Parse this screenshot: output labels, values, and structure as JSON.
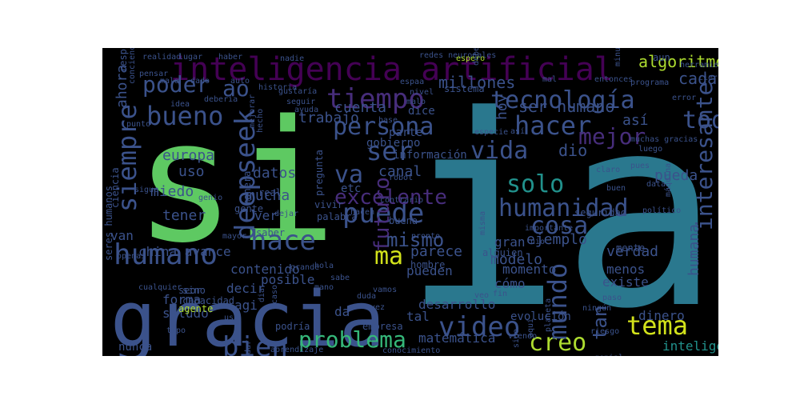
{
  "palette": {
    "background": "#000000",
    "page": "#ffffff",
    "colors": {
      "green": "#5ec962",
      "teal": "#2a788e",
      "blue": "#3b528b",
      "purple": "#472d7b",
      "dark": "#440154",
      "aqua": "#21918c",
      "mint": "#35b779",
      "yellow": "#d2e21b",
      "lime": "#addc30"
    }
  },
  "words": [
    {
      "text": "ia",
      "color": "teal"
    },
    {
      "text": "si",
      "color": "green"
    },
    {
      "text": "gracia",
      "color": "blue"
    },
    {
      "text": "inteligencia artificial",
      "color": "dark"
    },
    {
      "text": "tiempo",
      "color": "purple"
    },
    {
      "text": "tecnología",
      "color": "blue"
    },
    {
      "text": "persona",
      "color": "blue"
    },
    {
      "text": "humano",
      "color": "blue"
    },
    {
      "text": "deepseek",
      "color": "blue"
    },
    {
      "text": "siempre",
      "color": "blue"
    },
    {
      "text": "hace",
      "color": "blue"
    },
    {
      "text": "puede",
      "color": "blue"
    },
    {
      "text": "humanidad",
      "color": "blue"
    },
    {
      "text": "video",
      "color": "blue"
    },
    {
      "text": "tema",
      "color": "yellow"
    },
    {
      "text": "bien",
      "color": "blue"
    },
    {
      "text": "problema",
      "color": "mint"
    },
    {
      "text": "creo",
      "color": "lime"
    },
    {
      "text": "bueno",
      "color": "blue"
    },
    {
      "text": "hacer",
      "color": "blue"
    },
    {
      "text": "mejor",
      "color": "purple"
    },
    {
      "text": "toda",
      "color": "blue"
    },
    {
      "text": "vida",
      "color": "blue"
    },
    {
      "text": "solo",
      "color": "aqua"
    },
    {
      "text": "cosa",
      "color": "blue"
    },
    {
      "text": "mundo",
      "color": "blue"
    },
    {
      "text": "ser",
      "color": "blue"
    },
    {
      "text": "va",
      "color": "blue"
    },
    {
      "text": "ao",
      "color": "blue"
    },
    {
      "text": "poder",
      "color": "blue"
    },
    {
      "text": "ma",
      "color": "yellow"
    },
    {
      "text": "interesante",
      "color": "blue"
    },
    {
      "text": "excelente",
      "color": "purple"
    },
    {
      "text": "futuro",
      "color": "purple"
    },
    {
      "text": "mismo",
      "color": "blue"
    },
    {
      "text": "algoritmo",
      "color": "lime"
    },
    {
      "text": "ser humano",
      "color": "blue"
    },
    {
      "text": "dio",
      "color": "blue"
    },
    {
      "text": "tan",
      "color": "blue"
    },
    {
      "text": "así",
      "color": "blue"
    },
    {
      "text": "cada",
      "color": "blue"
    },
    {
      "text": "hoy",
      "color": "blue"
    },
    {
      "text": "millones",
      "color": "blue"
    },
    {
      "text": "cuenta",
      "color": "blue"
    },
    {
      "text": "trabajo",
      "color": "blue"
    },
    {
      "text": "ahora",
      "color": "blue"
    },
    {
      "text": "europa",
      "color": "blue"
    },
    {
      "text": "uso",
      "color": "blue"
    },
    {
      "text": "miedo",
      "color": "blue"
    },
    {
      "text": "tener",
      "color": "blue"
    },
    {
      "text": "datos",
      "color": "blue"
    },
    {
      "text": "mucha",
      "color": "blue"
    },
    {
      "text": "canal",
      "color": "blue"
    },
    {
      "text": "parece",
      "color": "blue"
    },
    {
      "text": "modelo",
      "color": "blue"
    },
    {
      "text": "verdad",
      "color": "blue"
    },
    {
      "text": "menos",
      "color": "blue"
    },
    {
      "text": "existe",
      "color": "blue"
    },
    {
      "text": "humana",
      "color": "blue"
    },
    {
      "text": "pueda",
      "color": "blue"
    },
    {
      "text": "ejemplo",
      "color": "blue"
    },
    {
      "text": "gran",
      "color": "blue"
    },
    {
      "text": "momento",
      "color": "blue"
    },
    {
      "text": "cómo",
      "color": "blue"
    },
    {
      "text": "pueden",
      "color": "blue"
    },
    {
      "text": "contenido",
      "color": "blue"
    },
    {
      "text": "decir",
      "color": "blue"
    },
    {
      "text": "posible",
      "color": "blue"
    },
    {
      "text": "china avance",
      "color": "blue"
    },
    {
      "text": "van",
      "color": "blue"
    },
    {
      "text": "forma",
      "color": "blue"
    },
    {
      "text": "saludo",
      "color": "blue"
    },
    {
      "text": "sino",
      "color": "blue"
    },
    {
      "text": "nunca",
      "color": "blue"
    },
    {
      "text": "desarrollo",
      "color": "blue"
    },
    {
      "text": "dinero",
      "color": "blue"
    },
    {
      "text": "matemática",
      "color": "blue"
    },
    {
      "text": "inteligencia",
      "color": "aqua"
    },
    {
      "text": "información",
      "color": "blue"
    },
    {
      "text": "gobierno",
      "color": "blue"
    },
    {
      "text": "parte",
      "color": "blue"
    },
    {
      "text": "dice",
      "color": "blue"
    },
    {
      "text": "sistema",
      "color": "blue"
    },
    {
      "text": "etc",
      "color": "blue"
    },
    {
      "text": "tal",
      "color": "blue"
    },
    {
      "text": "da",
      "color": "blue"
    },
    {
      "text": "ver",
      "color": "blue"
    },
    {
      "text": "saber",
      "color": "blue"
    },
    {
      "text": "gente",
      "color": "blue"
    },
    {
      "text": "manera",
      "color": "blue"
    },
    {
      "text": "real",
      "color": "blue"
    },
    {
      "text": "pregunta",
      "color": "blue"
    },
    {
      "text": "vivir",
      "color": "blue"
    },
    {
      "text": "palabra",
      "color": "blue"
    },
    {
      "text": "buena",
      "color": "blue"
    },
    {
      "text": "hombre",
      "color": "blue"
    },
    {
      "text": "alguien",
      "color": "blue"
    },
    {
      "text": "seor",
      "color": "blue"
    },
    {
      "text": "capacidad",
      "color": "blue"
    },
    {
      "text": "agente",
      "color": "lime"
    },
    {
      "text": "agi",
      "color": "blue"
    },
    {
      "text": "podría",
      "color": "blue"
    },
    {
      "text": "empresa",
      "color": "blue"
    },
    {
      "text": "evolución",
      "color": "blue"
    },
    {
      "text": "tipo",
      "color": "blue"
    },
    {
      "text": "aprendizaje",
      "color": "blue"
    },
    {
      "text": "conocimiento",
      "color": "blue"
    },
    {
      "text": "seguridad",
      "color": "blue"
    },
    {
      "text": "mente",
      "color": "blue"
    },
    {
      "text": "ciencia",
      "color": "blue"
    },
    {
      "text": "seres humanos",
      "color": "blue"
    },
    {
      "text": "conciencia",
      "color": "blue"
    },
    {
      "text": "respuesta",
      "color": "blue"
    },
    {
      "text": "realidad",
      "color": "blue"
    },
    {
      "text": "lugar",
      "color": "blue"
    },
    {
      "text": "haber",
      "color": "blue"
    },
    {
      "text": "nadie",
      "color": "blue"
    },
    {
      "text": "redes neuronales",
      "color": "blue"
    },
    {
      "text": "espero",
      "color": "lime"
    },
    {
      "text": "debe",
      "color": "blue"
    },
    {
      "text": "minuto",
      "color": "blue"
    },
    {
      "text": "aun",
      "color": "blue"
    },
    {
      "text": "herramienta",
      "color": "blue"
    },
    {
      "text": "cierto",
      "color": "blue"
    },
    {
      "text": "error",
      "color": "blue"
    },
    {
      "text": "pensar",
      "color": "blue"
    },
    {
      "text": "espaa",
      "color": "blue"
    },
    {
      "text": "nivel",
      "color": "blue"
    },
    {
      "text": "malo",
      "color": "blue"
    },
    {
      "text": "mal",
      "color": "blue"
    },
    {
      "text": "entonces",
      "color": "blue"
    },
    {
      "text": "programa",
      "color": "blue"
    },
    {
      "text": "mala",
      "color": "blue"
    },
    {
      "text": "dado",
      "color": "blue"
    },
    {
      "text": "auto",
      "color": "blue"
    },
    {
      "text": "historia",
      "color": "blue"
    },
    {
      "text": "gustaría",
      "color": "blue"
    },
    {
      "text": "seguir",
      "color": "blue"
    },
    {
      "text": "ayuda",
      "color": "blue"
    },
    {
      "text": "idea",
      "color": "blue"
    },
    {
      "text": "deberia",
      "color": "blue"
    },
    {
      "text": "punto",
      "color": "blue"
    },
    {
      "text": "mejorar",
      "color": "blue"
    },
    {
      "text": "hecho",
      "color": "blue"
    },
    {
      "text": "base",
      "color": "blue"
    },
    {
      "text": "especie",
      "color": "blue"
    },
    {
      "text": "así",
      "color": "blue"
    },
    {
      "text": "muchas gracias",
      "color": "blue"
    },
    {
      "text": "luego",
      "color": "blue"
    },
    {
      "text": "claro",
      "color": "blue"
    },
    {
      "text": "pues",
      "color": "blue"
    },
    {
      "text": "data",
      "color": "blue"
    },
    {
      "text": "buen",
      "color": "blue"
    },
    {
      "text": "máquina",
      "color": "blue"
    },
    {
      "text": "político",
      "color": "blue"
    },
    {
      "text": "sigue",
      "color": "blue"
    },
    {
      "text": "genio",
      "color": "blue"
    },
    {
      "text": "dejar",
      "color": "blue"
    },
    {
      "text": "hacen",
      "color": "blue"
    },
    {
      "text": "misma",
      "color": "blue"
    },
    {
      "text": "importante",
      "color": "blue"
    },
    {
      "text": "nio",
      "color": "blue"
    },
    {
      "text": "openai",
      "color": "blue"
    },
    {
      "text": "mayor",
      "color": "blue"
    },
    {
      "text": "hola",
      "color": "blue"
    },
    {
      "text": "grande",
      "color": "blue"
    },
    {
      "text": "mano",
      "color": "blue"
    },
    {
      "text": "sabe",
      "color": "blue"
    },
    {
      "text": "vamos",
      "color": "blue"
    },
    {
      "text": "fin",
      "color": "blue"
    },
    {
      "text": "paso",
      "color": "blue"
    },
    {
      "text": "cualquier",
      "color": "blue"
    },
    {
      "text": "duda",
      "color": "blue"
    },
    {
      "text": "dia",
      "color": "blue"
    },
    {
      "text": "caso",
      "color": "blue"
    },
    {
      "text": "dar",
      "color": "blue"
    },
    {
      "text": "sido",
      "color": "blue"
    },
    {
      "text": "planeta",
      "color": "blue"
    },
    {
      "text": "ningún",
      "color": "blue"
    },
    {
      "text": "riesgo",
      "color": "blue"
    },
    {
      "text": "usa",
      "color": "blue"
    },
    {
      "text": "vez",
      "color": "blue"
    },
    {
      "text": "veo",
      "color": "blue"
    },
    {
      "text": "viendo",
      "color": "blue"
    },
    {
      "text": "aquí",
      "color": "blue"
    },
    {
      "text": "genial",
      "color": "blue"
    },
    {
      "text": "pronto",
      "color": "blue"
    },
    {
      "text": "contrario",
      "color": "blue"
    },
    {
      "text": "robot",
      "color": "blue"
    },
    {
      "text": "igual",
      "color": "blue"
    },
    {
      "text": "solo",
      "color": "blue"
    }
  ]
}
